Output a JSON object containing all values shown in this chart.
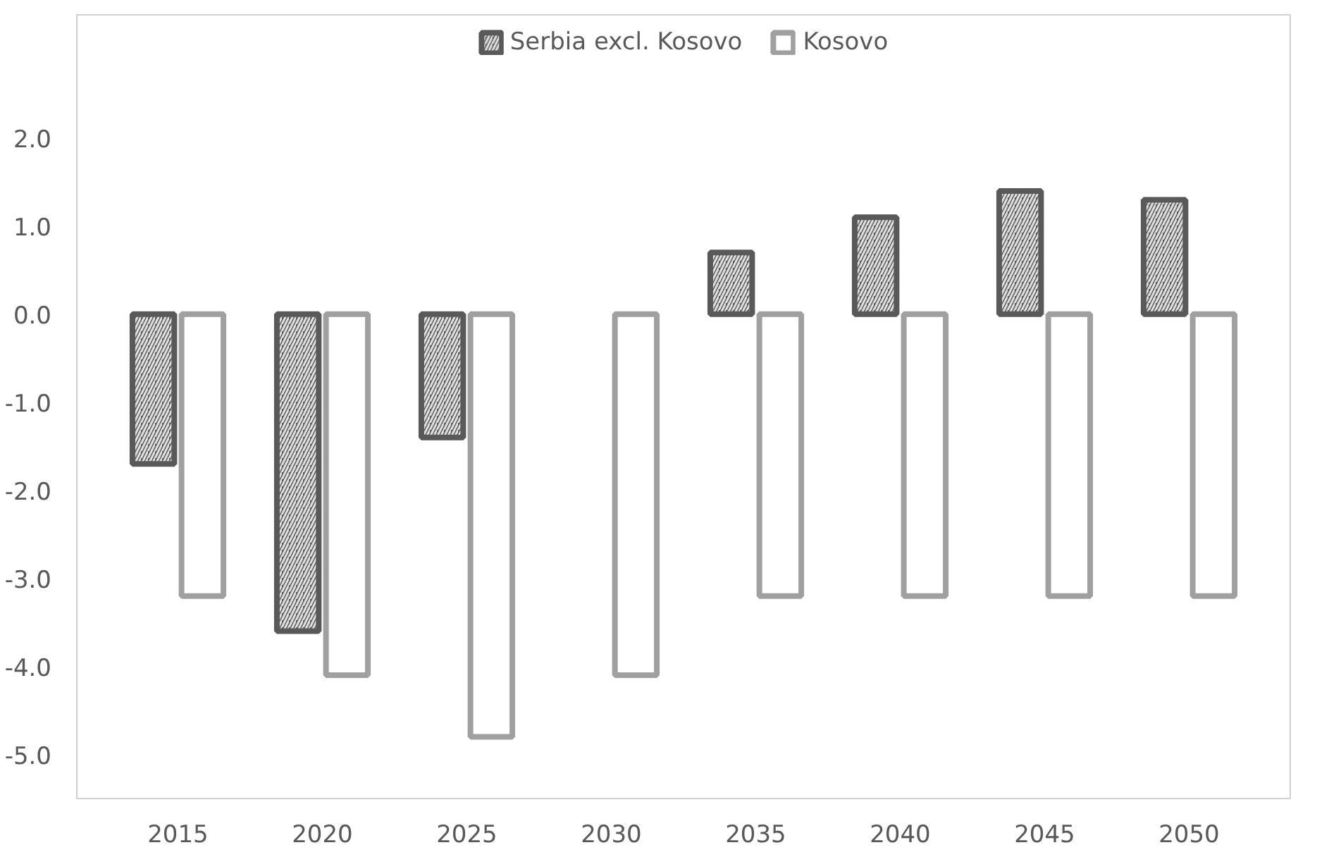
{
  "chart_data": {
    "type": "bar",
    "categories": [
      "2015",
      "2020",
      "2025",
      "2030",
      "2035",
      "2040",
      "2045",
      "2050"
    ],
    "series": [
      {
        "name": "Serbia excl. Kosovo",
        "color": "#595959",
        "values": [
          -1.7,
          -3.6,
          -1.4,
          null,
          0.7,
          1.1,
          1.4,
          1.3
        ]
      },
      {
        "name": "Kosovo",
        "color": "#a0a0a0",
        "values": [
          -3.2,
          -4.1,
          -4.8,
          -4.1,
          -3.2,
          -3.2,
          -3.2,
          -3.2
        ]
      }
    ],
    "ylim": [
      -5.5,
      3.4
    ],
    "yticks": [
      {
        "value": 2,
        "label": "2.0"
      },
      {
        "value": 1,
        "label": "1.0"
      },
      {
        "value": 0,
        "label": "0.0"
      },
      {
        "value": -1,
        "label": "-1.0"
      },
      {
        "value": -2,
        "label": "-2.0"
      },
      {
        "value": -3,
        "label": "-3.0"
      },
      {
        "value": -4,
        "label": "-4.0"
      },
      {
        "value": -5,
        "label": "-5.0"
      }
    ],
    "legend": "top",
    "grid": false
  }
}
